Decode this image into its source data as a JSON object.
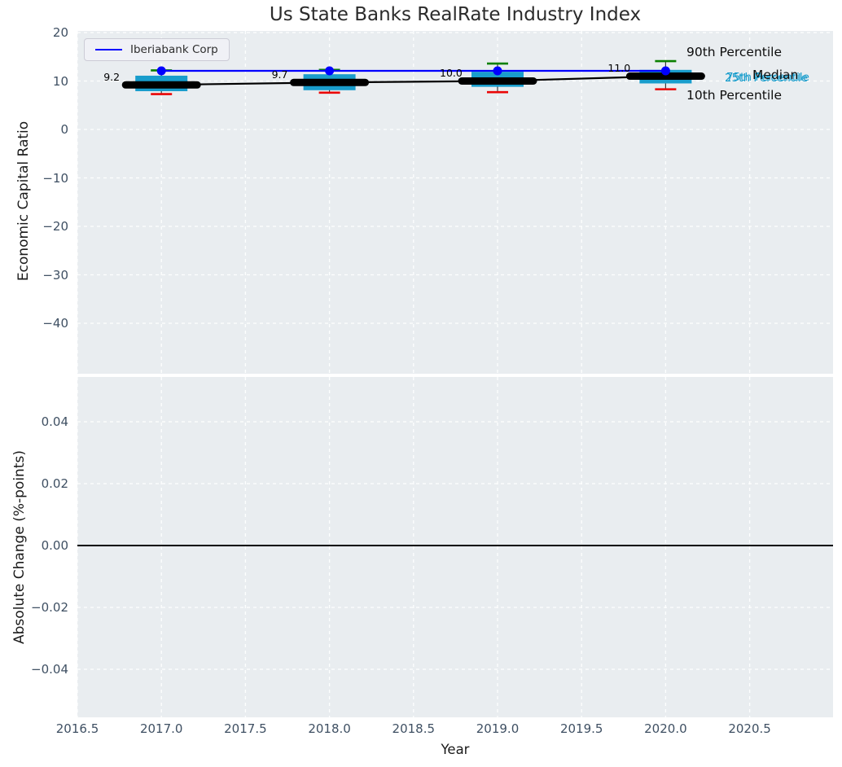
{
  "title": "Us State Banks RealRate Industry Index",
  "legend": {
    "label": "Iberiabank Corp"
  },
  "labels": {
    "p90": "90th Percentile",
    "p75": "75th Percentile",
    "median": "Median",
    "p25": "25th Percentile",
    "p10": "10th Percentile"
  },
  "chart_data": {
    "type": "boxplot+line",
    "title": "Us State Banks RealRate Industry Index",
    "xlabel": "Year",
    "x_ticks": [
      "2016.5",
      "2017.0",
      "2017.5",
      "2018.0",
      "2018.5",
      "2019.0",
      "2019.5",
      "2020.0",
      "2020.5"
    ],
    "x_tick_values": [
      2016.5,
      2017.0,
      2017.5,
      2018.0,
      2018.5,
      2019.0,
      2019.5,
      2020.0,
      2020.5
    ],
    "top_panel": {
      "ylabel": "Economic Capital Ratio",
      "y_ticks": [
        "20",
        "10",
        "0",
        "−10",
        "−20",
        "−30",
        "−40"
      ],
      "y_tick_values": [
        20,
        10,
        0,
        -10,
        -20,
        -30,
        -40
      ],
      "ylim": [
        -50.8,
        20.3
      ],
      "grid": true,
      "boxplot": {
        "years": [
          2017,
          2018,
          2019,
          2020
        ],
        "p10": [
          7.3,
          7.6,
          7.7,
          8.3
        ],
        "p25": [
          7.9,
          8.1,
          8.8,
          9.5
        ],
        "median": [
          9.2,
          9.7,
          10.0,
          11.0
        ],
        "p75": [
          11.1,
          11.4,
          11.9,
          12.3
        ],
        "p90": [
          12.2,
          12.3,
          13.6,
          14.1
        ]
      },
      "median_line": {
        "name": "Median",
        "values": [
          9.2,
          9.7,
          10.0,
          11.0
        ],
        "labels": [
          "9.2",
          "9.7",
          "10.0",
          "11.0"
        ]
      },
      "company_line": {
        "name": "Iberiabank Corp",
        "values": [
          12.1,
          12.1,
          12.1,
          12.1
        ]
      }
    },
    "bottom_panel": {
      "ylabel": "Absolute Change (%-points)",
      "y_ticks": [
        "0.04",
        "0.02",
        "0.00",
        "−0.02",
        "−0.04"
      ],
      "y_tick_values": [
        0.04,
        0.02,
        0.0,
        -0.02,
        -0.04
      ],
      "ylim": [
        -0.055,
        0.0545
      ],
      "zero_line": 0.0,
      "grid": true
    },
    "legend_position": "upper left",
    "colors": {
      "box": "#199dcc",
      "p90_cap": "#0a8000",
      "p10_cap": "#ea0606",
      "median": "#000000",
      "company": "#0000ff",
      "grid": "#ffffff",
      "axes_background": "#e9edf0",
      "tick_label": "#3f5063"
    }
  }
}
